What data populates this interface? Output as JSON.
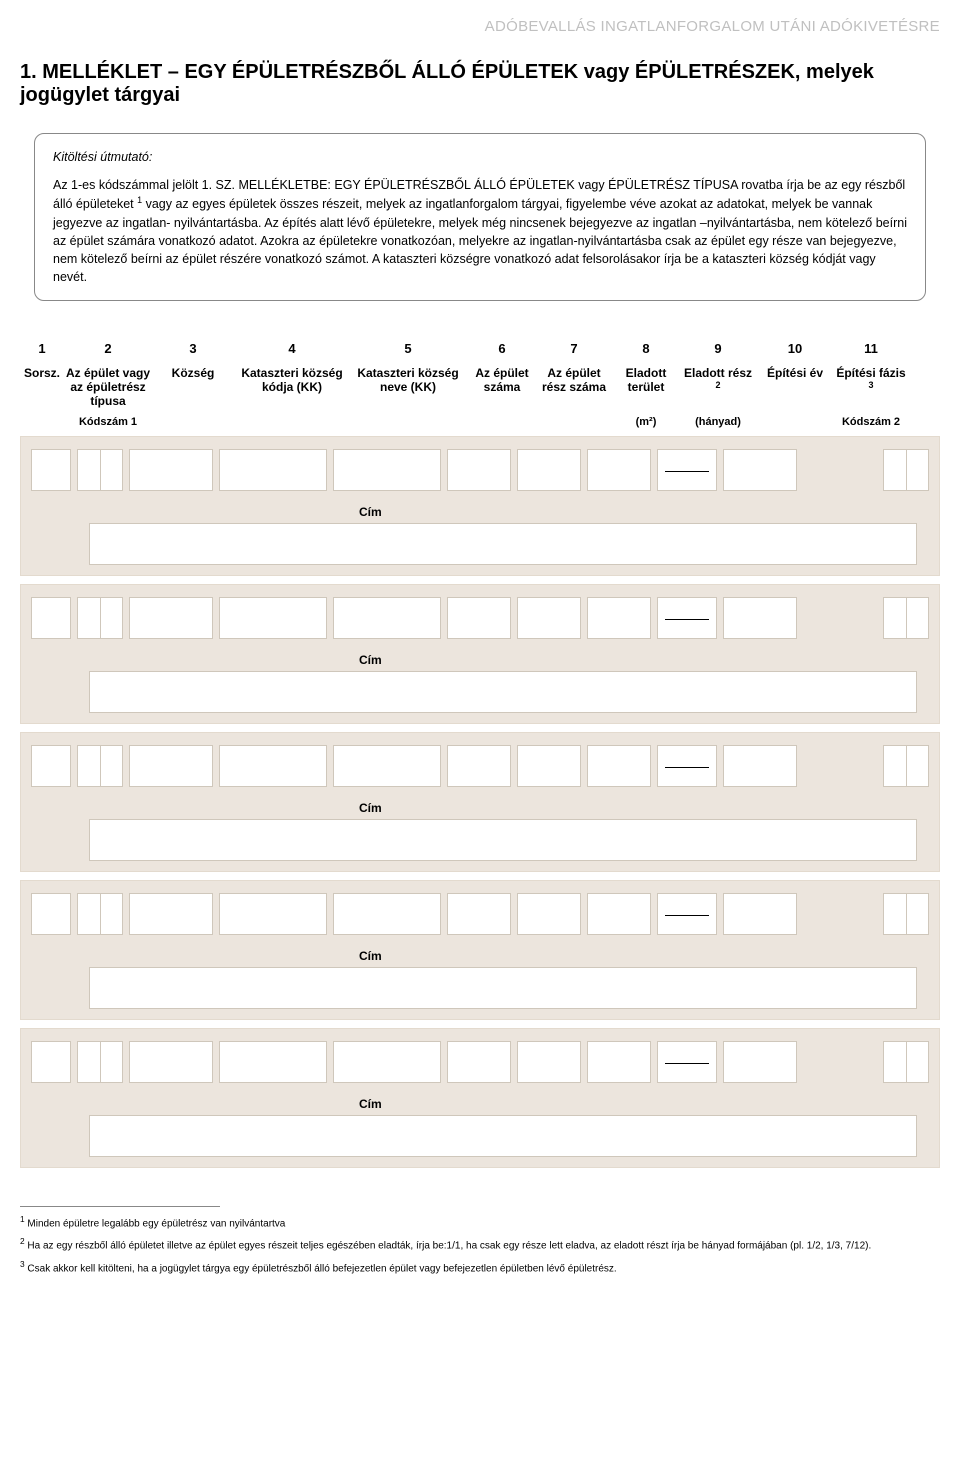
{
  "doc_header": "ADÓBEVALLÁS INGATLANFORGALOM UTÁNI ADÓKIVETÉSRE",
  "title": "1. MELLÉKLET – EGY ÉPÜLETRÉSZBŐL ÁLLÓ ÉPÜLETEK vagy ÉPÜLETRÉSZEK, melyek jogügylet tárgyai",
  "instructions": {
    "label": "Kitöltési útmutató:",
    "line1": "Az 1-es kódszámmal jelölt 1. SZ. MELLÉKLETBE:  EGY ÉPÜLETRÉSZBŐL ÁLLÓ ÉPÜLETEK  vagy ÉPÜLETRÉSZ TÍPUSA rovatba írja be az egy részből álló épületeket ",
    "sup1": "1",
    "line2": " vagy az egyes épületek összes részeit, melyek az ingatlanforgalom tárgyai, figyelembe véve azokat az adatokat, melyek be vannak jegyezve az ingatlan- nyilvántartásba. Az építés alatt lévő épületekre, melyek még nincsenek bejegyezve az ingatlan –nyilvántartásba, nem kötelező beírni az épület számára vonatkozó adatot. Azokra az épületekre vonatkozóan, melyekre az ingatlan-nyilvántartásba csak az épület egy része van bejegyezve, nem kötelező beírni az épület részére vonatkozó számot. A kataszteri községre vonatkozó adat felsorolásakor írja be a kataszteri község kódját vagy nevét."
  },
  "columns": {
    "nums": [
      "1",
      "2",
      "3",
      "4",
      "5",
      "6",
      "7",
      "8",
      "9",
      "10",
      "11"
    ],
    "h1": "Sorsz.",
    "h2": "Az épület vagy az épületrész típusa",
    "h3": "Község",
    "h4": "Kataszteri község kódja (KK)",
    "h5": "Kataszteri község neve (KK)",
    "h6": "Az épület száma",
    "h7": "Az épület rész száma",
    "h8": "Eladott terület",
    "h9_a": "Eladott rész ",
    "h9_sup": "2",
    "h10": "Építési év",
    "h11_a": "Építési fázis ",
    "h11_sup": "3",
    "u2": "Kódszám 1",
    "u8": "(m²)",
    "u9": "(hányad)",
    "u11": "Kódszám 2"
  },
  "row_address_label": "Cím",
  "footnotes": {
    "f1_sup": "1",
    "f1": " Minden épületre legalább egy épületrész van nyilvántartva",
    "f2_sup": "2",
    "f2": " Ha az egy részből álló épületet illetve az épület egyes részeit teljes egészében  eladták, írja be:1/1, ha csak egy része lett eladva, az eladott részt írja be hányad formájában (pl. 1/2, 1/3, 7/12).",
    "f3_sup": "3",
    "f3": " Csak akkor  kell  kitölteni, ha a jogügylet tárgya  egy épületrészből álló befejezetlen épület vagy befejezetlen  épületben lévő épületrész."
  }
}
